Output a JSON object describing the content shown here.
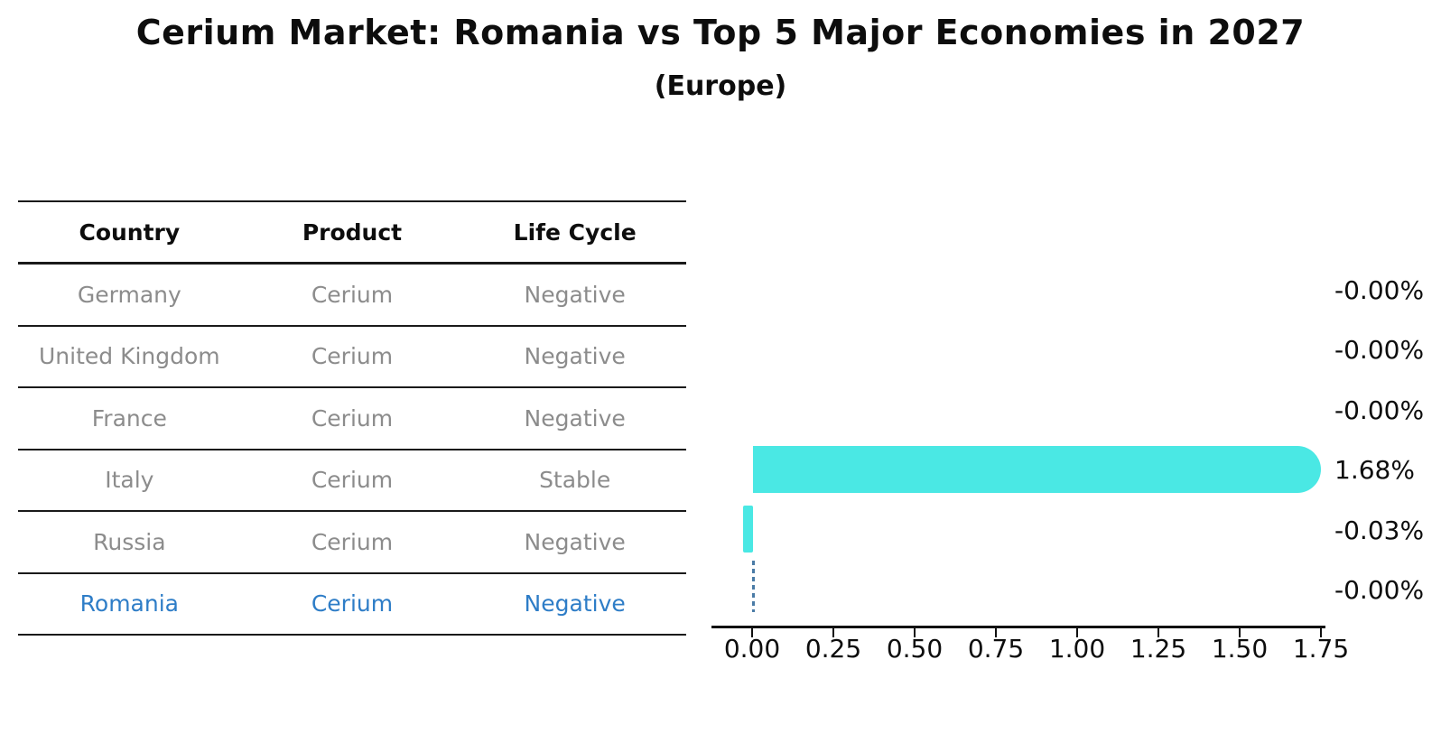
{
  "title": "Cerium Market: Romania vs Top 5 Major Economies in 2027",
  "subtitle": "(Europe)",
  "table": {
    "headers": [
      "Country",
      "Product",
      "Life Cycle"
    ],
    "rows": [
      {
        "country": "Germany",
        "product": "Cerium",
        "life_cycle": "Negative",
        "highlighted": false
      },
      {
        "country": "United Kingdom",
        "product": "Cerium",
        "life_cycle": "Negative",
        "highlighted": false
      },
      {
        "country": "France",
        "product": "Cerium",
        "life_cycle": "Negative",
        "highlighted": false
      },
      {
        "country": "Italy",
        "product": "Cerium",
        "life_cycle": "Stable",
        "highlighted": false
      },
      {
        "country": "Russia",
        "product": "Cerium",
        "life_cycle": "Negative",
        "highlighted": false
      },
      {
        "country": "Romania",
        "product": "Cerium",
        "life_cycle": "Negative",
        "highlighted": true
      }
    ]
  },
  "chart_data": {
    "type": "bar",
    "orientation": "horizontal",
    "title": "Cerium Market: Romania vs Top 5 Major Economies in 2027",
    "subtitle": "(Europe)",
    "categories": [
      "Germany",
      "United Kingdom",
      "France",
      "Italy",
      "Russia",
      "Romania"
    ],
    "values": [
      -0.0,
      -0.0,
      -0.0,
      1.68,
      -0.03,
      -0.0
    ],
    "value_labels": [
      "-0.00%",
      "-0.00%",
      "-0.00%",
      "1.68%",
      "-0.03%",
      "-0.00%"
    ],
    "x_ticks": [
      "0.00",
      "0.25",
      "0.50",
      "0.75",
      "1.00",
      "1.25",
      "1.50",
      "1.75"
    ],
    "xlim": [
      -0.13,
      1.76
    ],
    "grid": false,
    "legend": "none",
    "bar_color": "#4ae8e4",
    "highlight_country": "Romania",
    "highlight_zero_line_color": "#4a7ba6",
    "unit": "%"
  },
  "colors": {
    "background": "#ffffff",
    "text_primary": "#0d0d0d",
    "text_muted": "#8c8c8c",
    "highlight_blue": "#2e7dc7",
    "bar_cyan": "#4ae8e4",
    "dashed_steel_blue": "#4a7ba6",
    "table_lines": "#1a1a1a"
  }
}
